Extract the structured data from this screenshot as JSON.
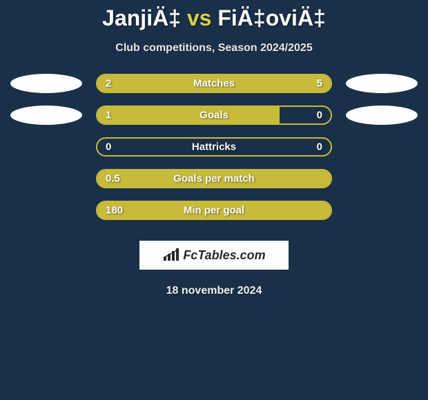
{
  "background_color": "#1a3048",
  "accent_color": "#c8bb3c",
  "text_color": "#ffffff",
  "title": {
    "player1": "JanjiÄ‡",
    "vs": "vs",
    "player2": "FiÄ‡oviÄ‡",
    "fontsize": 32
  },
  "subtitle": "Club competitions, Season 2024/2025",
  "stats": [
    {
      "label": "Matches",
      "left_value": "2",
      "right_value": "5",
      "left_fill_pct": 28,
      "right_fill_pct": 72,
      "show_left_ellipse": true,
      "show_right_ellipse": true
    },
    {
      "label": "Goals",
      "left_value": "1",
      "right_value": "0",
      "left_fill_pct": 78,
      "right_fill_pct": 0,
      "show_left_ellipse": true,
      "show_right_ellipse": true
    },
    {
      "label": "Hattricks",
      "left_value": "0",
      "right_value": "0",
      "left_fill_pct": 0,
      "right_fill_pct": 0,
      "show_left_ellipse": false,
      "show_right_ellipse": false
    },
    {
      "label": "Goals per match",
      "left_value": "0.5",
      "right_value": "",
      "left_fill_pct": 100,
      "right_fill_pct": 0,
      "show_left_ellipse": false,
      "show_right_ellipse": false
    },
    {
      "label": "Min per goal",
      "left_value": "180",
      "right_value": "",
      "left_fill_pct": 100,
      "right_fill_pct": 0,
      "show_left_ellipse": false,
      "show_right_ellipse": false
    }
  ],
  "logo": {
    "text": "FcTables.com",
    "icon": "bars-icon",
    "bg": "#ffffff",
    "fg": "#2a2a2a"
  },
  "date": "18 november 2024"
}
